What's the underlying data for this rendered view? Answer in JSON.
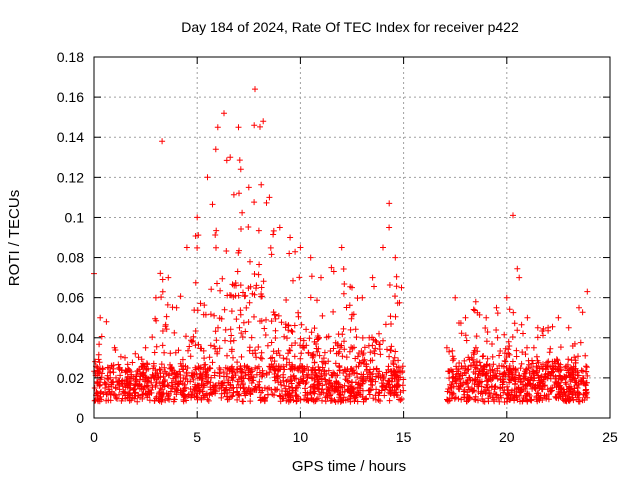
{
  "chart_data": {
    "type": "scatter",
    "title": "Day 184 of 2024, Rate Of TEC Index for receiver p422",
    "xlabel": "GPS time / hours",
    "ylabel": "ROTI / TECUs",
    "xlim": [
      0,
      25
    ],
    "ylim": [
      0,
      0.18
    ],
    "xticks": [
      0,
      5,
      10,
      15,
      20,
      25
    ],
    "xtick_labels": [
      "0",
      "5",
      "10",
      "15",
      "20",
      "25"
    ],
    "yticks": [
      0,
      0.02,
      0.04,
      0.06,
      0.08,
      0.1,
      0.12,
      0.14,
      0.16,
      0.18
    ],
    "ytick_labels": [
      "0",
      "0.02",
      "0.04",
      "0.06",
      "0.08",
      "0.1",
      "0.12",
      "0.14",
      "0.16",
      "0.18"
    ],
    "grid": true,
    "marker": "+",
    "color": "#ff0000",
    "series": [
      {
        "name": "ROTI",
        "envelope_hours": [
          0.0,
          0.3,
          0.6,
          1.0,
          1.5,
          2.0,
          2.5,
          3.0,
          3.3,
          3.6,
          4.0,
          4.5,
          5.0,
          5.5,
          6.0,
          6.3,
          6.6,
          7.0,
          7.5,
          7.8,
          8.2,
          8.5,
          9.0,
          9.5,
          10.0,
          10.5,
          11.0,
          11.5,
          12.0,
          12.5,
          13.0,
          13.5,
          14.0,
          14.3,
          14.6,
          14.9,
          17.1,
          17.5,
          18.0,
          18.5,
          19.0,
          19.5,
          20.0,
          20.3,
          20.6,
          21.0,
          21.5,
          22.0,
          22.5,
          23.0,
          23.5,
          23.9
        ],
        "envelope_roti": [
          0.072,
          0.05,
          0.048,
          0.035,
          0.03,
          0.032,
          0.035,
          0.06,
          0.138,
          0.07,
          0.055,
          0.085,
          0.1,
          0.12,
          0.145,
          0.152,
          0.13,
          0.145,
          0.115,
          0.164,
          0.148,
          0.11,
          0.095,
          0.09,
          0.085,
          0.08,
          0.07,
          0.075,
          0.085,
          0.065,
          0.06,
          0.07,
          0.085,
          0.107,
          0.08,
          0.065,
          0.035,
          0.06,
          0.05,
          0.058,
          0.05,
          0.055,
          0.06,
          0.101,
          0.07,
          0.05,
          0.045,
          0.045,
          0.05,
          0.045,
          0.055,
          0.063
        ],
        "baseline_roti": 0.008,
        "data_gap_hours": [
          15.0,
          17.1
        ]
      }
    ]
  }
}
